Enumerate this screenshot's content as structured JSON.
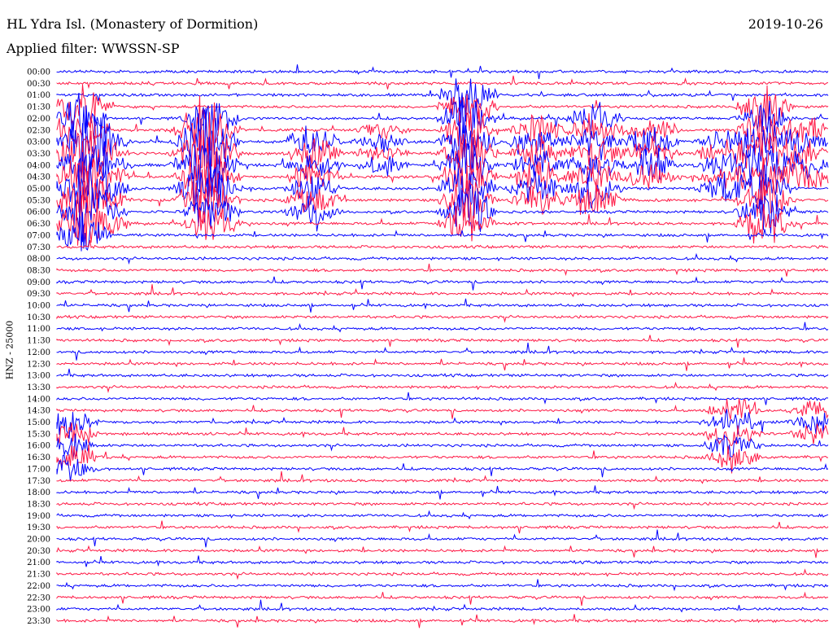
{
  "header": {
    "station": "HL Ydra Isl. (Monastery of Dormition)",
    "filter": "Applied filter: WWSSN-SP",
    "date": "2019-10-26",
    "channel_label": "HNZ - 25000"
  },
  "chart_data": {
    "type": "helicorder",
    "title": "HL Ydra Isl. (Monastery of Dormition)",
    "ylabel": "HNZ - 25000",
    "colors": {
      "odd": "#0000ff",
      "even": "#ff1744"
    },
    "tick_labels": [
      "00:00",
      "00:30",
      "01:00",
      "01:30",
      "02:00",
      "02:30",
      "03:00",
      "03:30",
      "04:00",
      "04:30",
      "05:00",
      "05:30",
      "06:00",
      "06:30",
      "07:00",
      "07:30",
      "08:00",
      "08:30",
      "09:00",
      "09:30",
      "10:00",
      "10:30",
      "11:00",
      "11:30",
      "12:00",
      "12:30",
      "13:00",
      "13:30",
      "14:00",
      "14:30",
      "15:00",
      "15:30",
      "16:00",
      "16:30",
      "17:00",
      "17:30",
      "18:00",
      "18:30",
      "19:00",
      "19:30",
      "20:00",
      "20:30",
      "21:00",
      "21:30",
      "22:00",
      "22:30",
      "23:00",
      "23:30"
    ],
    "rows": 48,
    "minutes_per_row": 30
  }
}
